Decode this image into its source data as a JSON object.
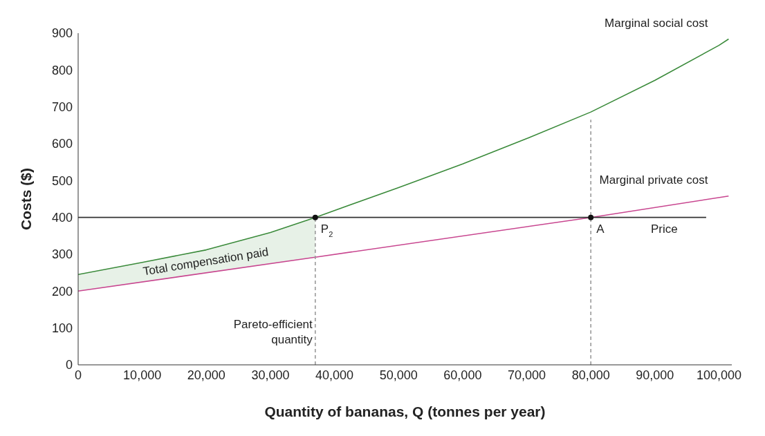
{
  "chart_data": {
    "type": "line",
    "xlabel": "Quantity of bananas, Q (tonnes per year)",
    "ylabel": "Costs ($)",
    "xlim": [
      0,
      102000
    ],
    "ylim": [
      0,
      900
    ],
    "xticks": [
      0,
      {
        "value": 10000,
        "label": "10,000"
      },
      {
        "value": 20000,
        "label": "20,000"
      },
      {
        "value": 30000,
        "label": "30,000"
      },
      {
        "value": 40000,
        "label": "40,000"
      },
      {
        "value": 50000,
        "label": "50,000"
      },
      {
        "value": 60000,
        "label": "60,000"
      },
      {
        "value": 70000,
        "label": "70,000"
      },
      {
        "value": 80000,
        "label": "80,000"
      },
      {
        "value": 90000,
        "label": "90,000"
      },
      {
        "value": 100000,
        "label": "100,000"
      }
    ],
    "yticks": [
      0,
      100,
      200,
      300,
      400,
      500,
      600,
      700,
      800,
      900
    ],
    "series": [
      {
        "color": "#3a8a3a",
        "name": "Marginal social cost",
        "x": [
          0,
          10000,
          20000,
          30000,
          37000,
          50000,
          60000,
          70000,
          80000,
          90000,
          100000,
          101500
        ],
        "values": [
          245,
          278,
          312,
          359,
          400,
          481,
          545,
          614,
          686,
          772,
          867,
          884
        ],
        "lower": [
          200,
          225,
          250,
          275,
          292,
          null,
          null,
          null,
          null,
          null,
          null,
          null
        ],
        "upper": [
          245,
          278,
          312,
          359,
          400,
          null,
          null,
          null,
          null,
          null,
          null,
          null
        ]
      },
      {
        "color": "#c8458f",
        "name": "Marginal private cost",
        "x": [
          0,
          37000,
          80000,
          101500
        ],
        "values": [
          200,
          292,
          400,
          458
        ]
      },
      {
        "type": "line",
        "color": "#333333",
        "x": [
          0,
          98000
        ],
        "values": [
          400,
          400
        ]
      },
      {
        "type": "line",
        "color": "#999999",
        "line_style": "dashed",
        "x": [
          37000,
          37000
        ],
        "values": [
          0,
          400
        ]
      },
      {
        "type": "line",
        "color": "#999999",
        "line_style": "dashed",
        "x": [
          80000,
          80000
        ],
        "values": [
          0,
          665
        ]
      },
      {
        "type": "scatter",
        "color": "#111111",
        "marker": "circle",
        "x": [
          37000,
          80000
        ],
        "values": [
          400,
          400
        ]
      }
    ],
    "annotations": [
      "Total compensation paid",
      {
        "text": "P$_{2}$",
        "x": 37000,
        "y": 400
      },
      {
        "text": "A",
        "x": 80000,
        "y": 400
      },
      {
        "text": "Price",
        "x": 88500,
        "y": 400
      },
      {
        "text": "Pareto-efficient quantity",
        "x": 37000,
        "y": 80
      }
    ]
  }
}
